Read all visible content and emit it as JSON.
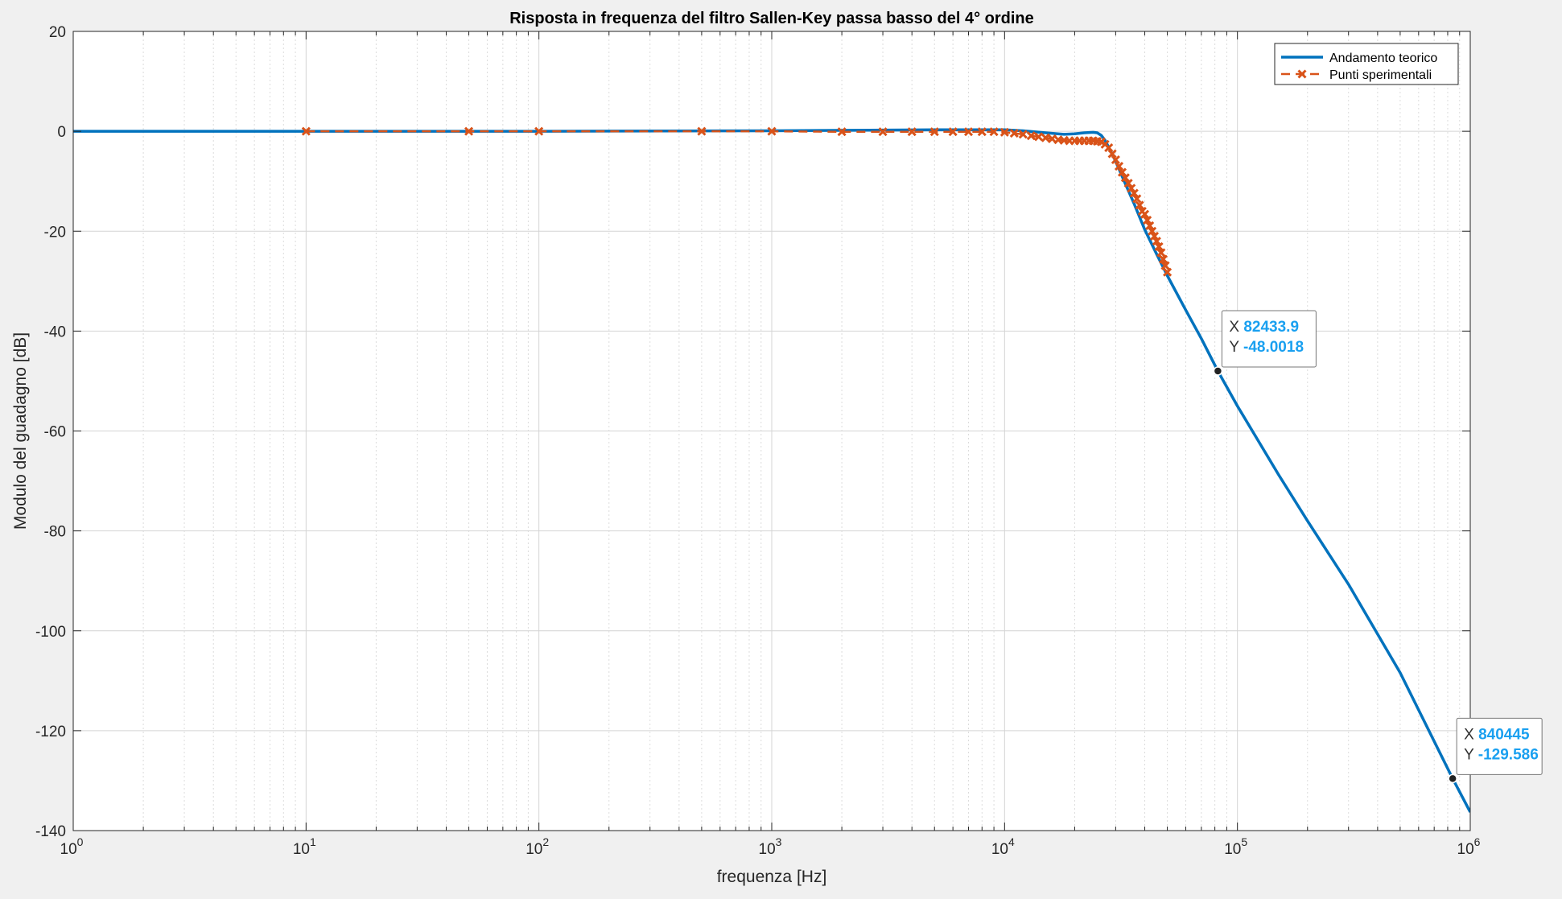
{
  "colors": {
    "theory": "#0072bd",
    "experimental": "#d95319",
    "tip_value": "#1aa0f0",
    "background": "#f0f0f0"
  },
  "chart_data": {
    "type": "line",
    "title": "Risposta in frequenza del filtro Sallen-Key passa basso del 4° ordine",
    "xlabel": "frequenza [Hz]",
    "ylabel": "Modulo del guadagno [dB]",
    "xscale": "log",
    "xlim": [
      1,
      1000000
    ],
    "ylim": [
      -140,
      20
    ],
    "x_ticks": [
      {
        "base": "10",
        "exp": "0"
      },
      {
        "base": "10",
        "exp": "1"
      },
      {
        "base": "10",
        "exp": "2"
      },
      {
        "base": "10",
        "exp": "3"
      },
      {
        "base": "10",
        "exp": "4"
      },
      {
        "base": "10",
        "exp": "5"
      },
      {
        "base": "10",
        "exp": "6"
      }
    ],
    "y_ticks": [
      "20",
      "0",
      "-20",
      "-40",
      "-60",
      "-80",
      "-100",
      "-120",
      "-140"
    ],
    "grid": true,
    "legend": {
      "position": "top-right",
      "entries": [
        "Andamento teorico",
        "Punti sperimentali"
      ]
    },
    "series": [
      {
        "name": "Andamento teorico",
        "style": "solid",
        "x": [
          1,
          10,
          100,
          1000,
          5000,
          10000,
          12000,
          15000,
          18000,
          20000,
          22000,
          24000,
          25000,
          26000,
          27000,
          28000,
          30000,
          33000,
          36000,
          40000,
          45000,
          50000,
          60000,
          70000,
          82433.9,
          100000,
          150000,
          200000,
          300000,
          500000,
          840445,
          1000000
        ],
        "y": [
          0,
          0,
          0,
          0.1,
          0.3,
          0.3,
          0.1,
          -0.3,
          -0.6,
          -0.5,
          -0.3,
          -0.2,
          -0.3,
          -0.8,
          -1.8,
          -3.2,
          -6.0,
          -10.5,
          -14.5,
          -19.7,
          -24.6,
          -28.9,
          -35.8,
          -41.5,
          -48.0,
          -55.0,
          -68.7,
          -78.0,
          -90.7,
          -108.4,
          -129.586,
          -136.3
        ]
      },
      {
        "name": "Punti sperimentali",
        "style": "dashed-x",
        "x": [
          10,
          50,
          100,
          500,
          1000,
          2000,
          3000,
          4000,
          5000,
          6000,
          7000,
          8000,
          9000,
          10000,
          11000,
          12000,
          13000,
          14000,
          15000,
          16000,
          17000,
          18000,
          19000,
          20000,
          21000,
          22000,
          23000,
          24000,
          25000,
          26000,
          27000,
          28000,
          29000,
          30000,
          31000,
          32000,
          33000,
          34000,
          35000,
          36000,
          37000,
          38000,
          39000,
          40000,
          41000,
          42000,
          43000,
          44000,
          45000,
          46000,
          47000,
          48000,
          49000,
          50000
        ],
        "y": [
          0,
          0,
          0,
          0,
          0,
          -0.1,
          -0.1,
          -0.1,
          -0.1,
          -0.1,
          -0.1,
          -0.1,
          -0.1,
          -0.2,
          -0.4,
          -0.6,
          -0.9,
          -1.1,
          -1.3,
          -1.5,
          -1.7,
          -1.8,
          -1.9,
          -1.9,
          -1.9,
          -1.9,
          -1.9,
          -1.9,
          -2.0,
          -2.1,
          -2.6,
          -3.3,
          -4.5,
          -5.7,
          -7.0,
          -8.2,
          -9.3,
          -10.4,
          -11.4,
          -12.4,
          -13.5,
          -14.8,
          -16.0,
          -16.6,
          -17.8,
          -18.9,
          -20.0,
          -21.0,
          -22.0,
          -23.1,
          -24.3,
          -25.6,
          -26.9,
          -28.2
        ]
      }
    ],
    "datatips": [
      {
        "x_label": "X",
        "x_value": "82433.9",
        "y_label": "Y",
        "y_value": "-48.0018",
        "x": 82433.9,
        "y": -48.0018
      },
      {
        "x_label": "X",
        "x_value": "840445",
        "y_label": "Y",
        "y_value": "-129.586",
        "x": 840445,
        "y": -129.586
      }
    ]
  }
}
